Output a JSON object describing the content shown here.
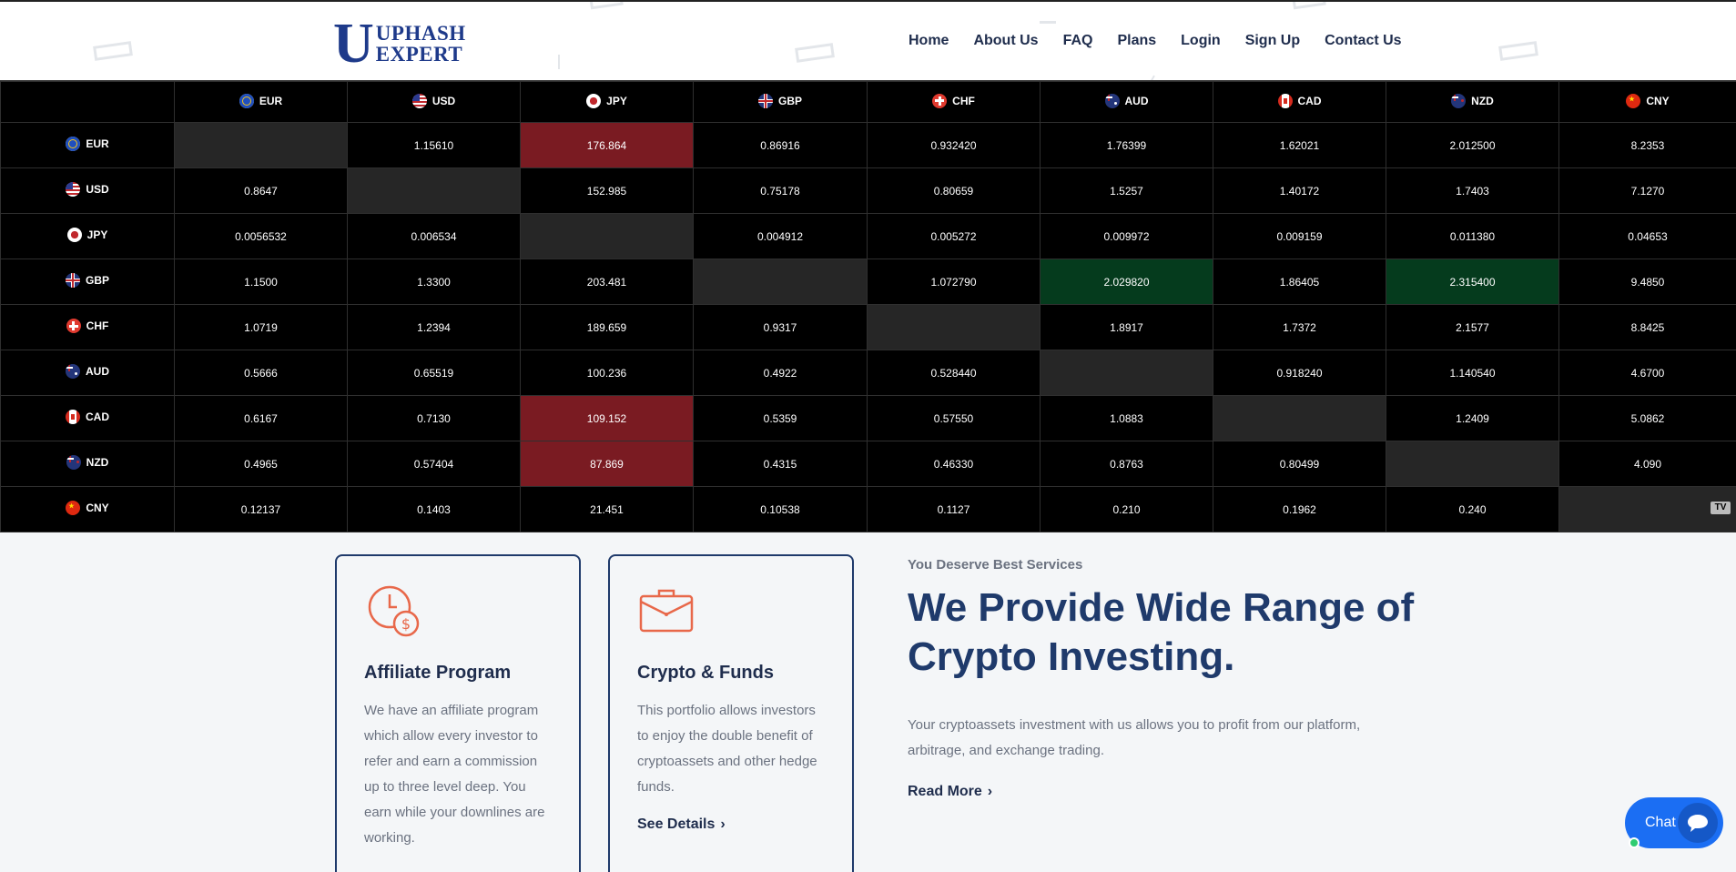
{
  "brand": {
    "logo_letter": "U",
    "line1": "UPHASH",
    "line2": "EXPERT"
  },
  "nav": [
    {
      "label": "Home"
    },
    {
      "label": "About Us"
    },
    {
      "label": "FAQ"
    },
    {
      "label": "Plans"
    },
    {
      "label": "Login"
    },
    {
      "label": "Sign Up"
    },
    {
      "label": "Contact Us"
    }
  ],
  "currency_table": {
    "currencies": [
      "EUR",
      "USD",
      "JPY",
      "GBP",
      "CHF",
      "AUD",
      "CAD",
      "NZD",
      "CNY"
    ],
    "rows": [
      [
        "",
        "1.15610",
        "176.864",
        "0.86916",
        "0.932420",
        "1.76399",
        "1.62021",
        "2.012500",
        "8.2353"
      ],
      [
        "0.8647",
        "",
        "152.985",
        "0.75178",
        "0.80659",
        "1.5257",
        "1.40172",
        "1.7403",
        "7.1270"
      ],
      [
        "0.0056532",
        "0.006534",
        "",
        "0.004912",
        "0.005272",
        "0.009972",
        "0.009159",
        "0.011380",
        "0.04653"
      ],
      [
        "1.1500",
        "1.3300",
        "203.481",
        "",
        "1.072790",
        "2.029820",
        "1.86405",
        "2.315400",
        "9.4850"
      ],
      [
        "1.0719",
        "1.2394",
        "189.659",
        "0.9317",
        "",
        "1.8917",
        "1.7372",
        "2.1577",
        "8.8425"
      ],
      [
        "0.5666",
        "0.65519",
        "100.236",
        "0.4922",
        "0.528440",
        "",
        "0.918240",
        "1.140540",
        "4.6700"
      ],
      [
        "0.6167",
        "0.7130",
        "109.152",
        "0.5359",
        "0.57550",
        "1.0883",
        "",
        "1.2409",
        "5.0862"
      ],
      [
        "0.4965",
        "0.57404",
        "87.869",
        "0.4315",
        "0.46330",
        "0.8763",
        "0.80499",
        "",
        "4.090"
      ],
      [
        "0.12137",
        "0.1403",
        "21.451",
        "0.10538",
        "0.1127",
        "0.210",
        "0.1962",
        "0.240",
        ""
      ]
    ],
    "highlights": {
      "red": [
        [
          0,
          2
        ],
        [
          6,
          2
        ],
        [
          7,
          2
        ]
      ],
      "green": [
        [
          3,
          5
        ],
        [
          3,
          7
        ]
      ]
    },
    "colors": {
      "red": "#7a1b22",
      "green": "#053b1d",
      "diagonal": "#262626"
    },
    "widget_logo": "TV"
  },
  "cards": [
    {
      "icon": "clock-dollar-icon",
      "title": "Affiliate Program",
      "text": "We have an affiliate program which allow every investor to refer and earn a commission up to three level deep. You earn while your downlines are working.",
      "link": ""
    },
    {
      "icon": "briefcase-icon",
      "title": "Crypto & Funds",
      "text": "This portfolio allows investors to enjoy the double benefit of cryptoassets and other hedge funds.",
      "link": "See Details"
    }
  ],
  "intro": {
    "kicker": "You Deserve Best Services",
    "title": "We Provide Wide Range of Crypto Investing.",
    "text": "Your cryptoassets investment with us allows you to profit from our platform, arbitrage, and exchange trading.",
    "link": "Read More"
  },
  "chat": {
    "label": "Chat"
  },
  "accent_color": "#1f3a6b",
  "icon_color": "#e8684a"
}
